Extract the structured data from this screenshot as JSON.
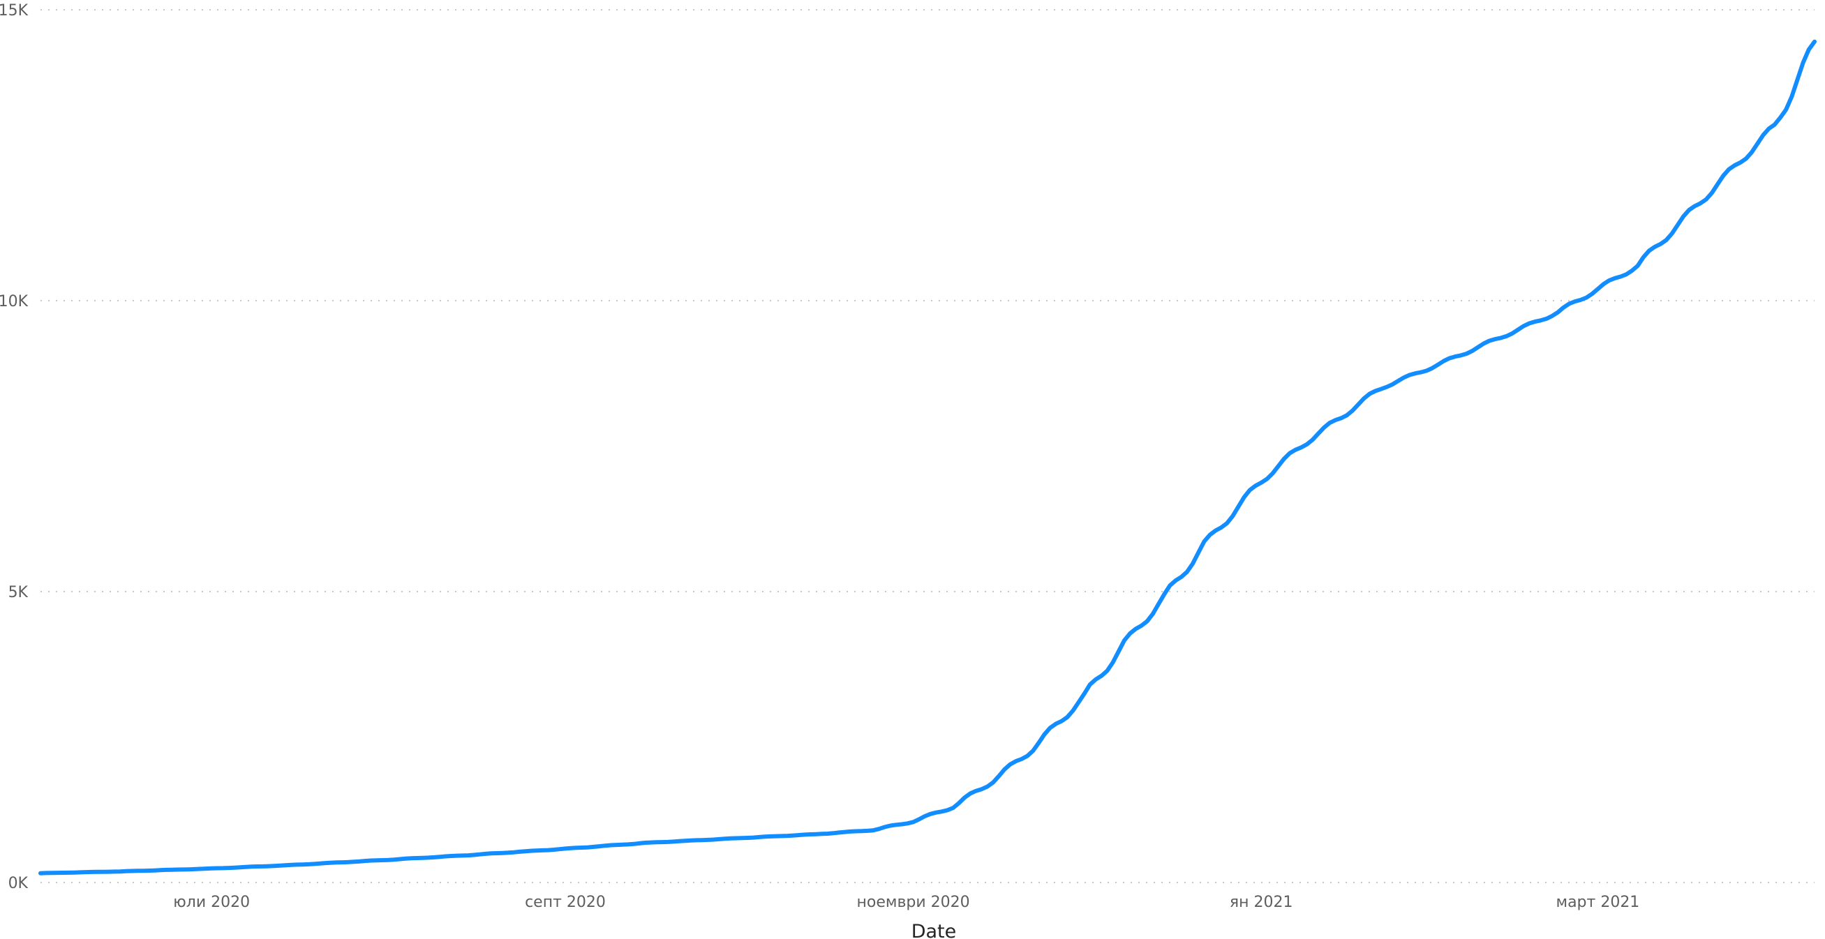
{
  "chart_data": {
    "type": "line",
    "title": "",
    "xlabel": "Date",
    "ylabel": "",
    "ylim": [
      0,
      15000
    ],
    "yticks": [
      {
        "value": 0,
        "label": "0K"
      },
      {
        "value": 5000,
        "label": "5K"
      },
      {
        "value": 10000,
        "label": "10K"
      },
      {
        "value": 15000,
        "label": "15K"
      }
    ],
    "xlim": [
      "2020-06-01",
      "2021-04-08"
    ],
    "xticks": [
      {
        "date": "2020-07-01",
        "label": "юли 2020"
      },
      {
        "date": "2020-09-01",
        "label": "септ 2020"
      },
      {
        "date": "2020-11-01",
        "label": "ноември 2020"
      },
      {
        "date": "2021-01-01",
        "label": "ян 2021"
      },
      {
        "date": "2021-03-01",
        "label": "март 2021"
      }
    ],
    "grid": true,
    "legend": "none",
    "series_color": "#118DFF",
    "series": [
      {
        "x": [
          "2020-06-01",
          "2020-06-15",
          "2020-07-01",
          "2020-07-15",
          "2020-08-01",
          "2020-08-15",
          "2020-09-01",
          "2020-09-15",
          "2020-10-01",
          "2020-10-15",
          "2020-10-25",
          "2020-11-01",
          "2020-11-08",
          "2020-11-15",
          "2020-11-22",
          "2020-12-01",
          "2020-12-08",
          "2020-12-15",
          "2020-12-22",
          "2021-01-01",
          "2021-01-08",
          "2021-01-15",
          "2021-01-22",
          "2021-02-01",
          "2021-02-08",
          "2021-02-15",
          "2021-02-22",
          "2021-03-01",
          "2021-03-08",
          "2021-03-15",
          "2021-03-22",
          "2021-04-01",
          "2021-04-08"
        ],
        "values": [
          160,
          190,
          240,
          300,
          390,
          470,
          580,
          680,
          760,
          830,
          900,
          1050,
          1300,
          1750,
          2300,
          3200,
          4100,
          4900,
          5800,
          6900,
          7500,
          8000,
          8500,
          8900,
          9200,
          9500,
          9800,
          10200,
          10600,
          11300,
          12000,
          13000,
          14400
        ]
      }
    ]
  }
}
